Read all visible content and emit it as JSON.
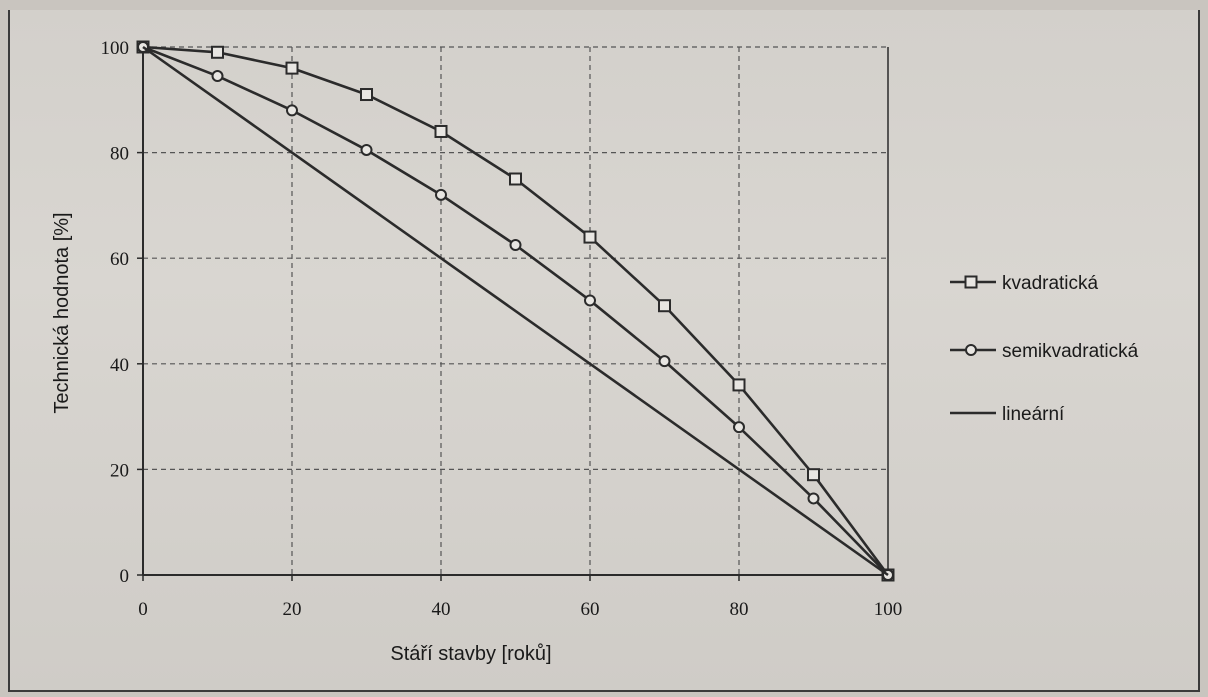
{
  "chart_data": {
    "type": "line",
    "xlabel": "Stáří stavby [roků]",
    "ylabel": "Technická hodnota [%]",
    "xlim": [
      0,
      100
    ],
    "ylim": [
      0,
      100
    ],
    "x_ticks": [
      0,
      20,
      40,
      60,
      80,
      100
    ],
    "y_ticks": [
      0,
      20,
      40,
      60,
      80,
      100
    ],
    "grid": true,
    "legend_position": "right",
    "series": [
      {
        "name": "kvadratická",
        "marker": "square",
        "x": [
          0,
          10,
          20,
          30,
          40,
          50,
          60,
          70,
          80,
          90,
          100
        ],
        "y": [
          100,
          99,
          96,
          91,
          84,
          75,
          64,
          51,
          36,
          19,
          0
        ]
      },
      {
        "name": "semikvadratická",
        "marker": "circle",
        "x": [
          0,
          10,
          20,
          30,
          40,
          50,
          60,
          70,
          80,
          90,
          100
        ],
        "y": [
          100,
          94.5,
          88,
          80.5,
          72,
          62.5,
          52,
          40.5,
          28,
          14.5,
          0
        ]
      },
      {
        "name": "lineární",
        "marker": "none",
        "x": [
          0,
          100
        ],
        "y": [
          100,
          0
        ]
      }
    ],
    "colors": {
      "line": "#2b2b2b",
      "grid": "#555555",
      "marker_fill": "#e8e6e2"
    }
  }
}
